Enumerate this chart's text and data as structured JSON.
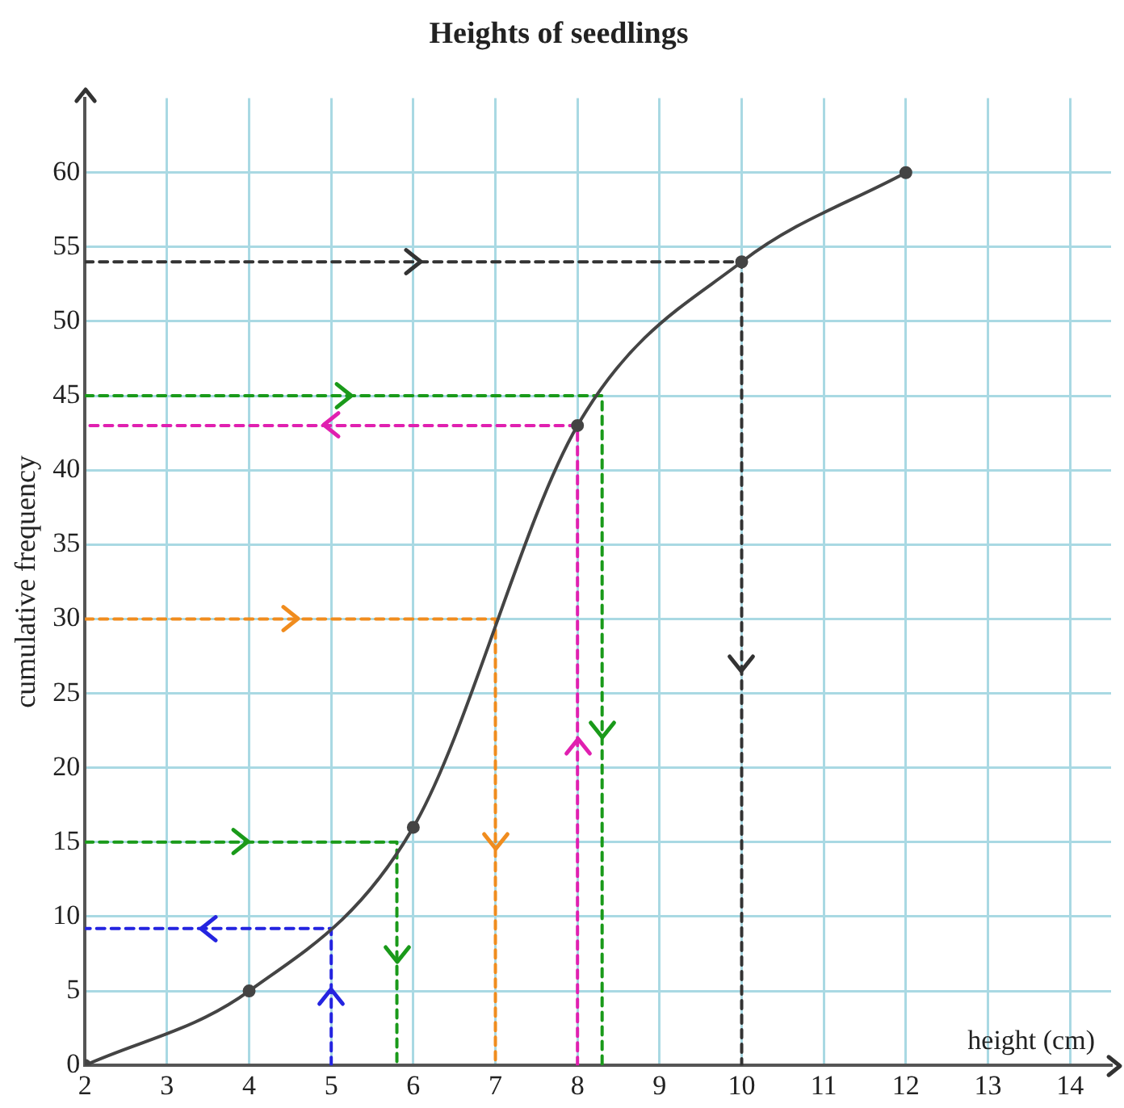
{
  "chart_data": {
    "type": "line",
    "title": "Heights of seedlings",
    "xlabel": "height (cm)",
    "ylabel": "cumulative frequency",
    "xlim": [
      2,
      14.5
    ],
    "ylim": [
      0,
      65
    ],
    "xticks": [
      2,
      3,
      4,
      5,
      6,
      7,
      8,
      9,
      10,
      11,
      12,
      13,
      14
    ],
    "yticks": [
      0,
      5,
      10,
      15,
      20,
      25,
      30,
      35,
      40,
      45,
      50,
      55,
      60
    ],
    "grid": true,
    "legend": false,
    "series": [
      {
        "color": "#444444",
        "x": [
          2,
          4,
          6,
          8,
          10,
          12
        ],
        "values": [
          0,
          5,
          16,
          43,
          54,
          60
        ],
        "marker": "circle",
        "line_style": "solid"
      },
      {
        "color": "#333333",
        "x": [
          2,
          10,
          10
        ],
        "values": [
          54,
          54,
          0
        ],
        "marker": "none",
        "line_style": "dashed"
      },
      {
        "color": "#1a9a1a",
        "x": [
          2,
          8.3,
          8.3
        ],
        "values": [
          45,
          45,
          0
        ],
        "marker": "none",
        "line_style": "dashed"
      },
      {
        "color": "#e020b0",
        "x": [
          8,
          8,
          2
        ],
        "values": [
          0,
          43,
          43
        ],
        "marker": "none",
        "line_style": "dashed"
      },
      {
        "color": "#f08c1e",
        "x": [
          2,
          7,
          7
        ],
        "values": [
          30,
          30,
          0
        ],
        "marker": "none",
        "line_style": "dashed"
      },
      {
        "color": "#1a9a1a",
        "x": [
          2,
          5.8,
          5.8
        ],
        "values": [
          15,
          15,
          0
        ],
        "marker": "none",
        "line_style": "dashed"
      },
      {
        "color": "#2424e0",
        "x": [
          5,
          5,
          2
        ],
        "values": [
          0,
          9.2,
          9.2
        ],
        "marker": "none",
        "line_style": "dashed"
      }
    ]
  }
}
